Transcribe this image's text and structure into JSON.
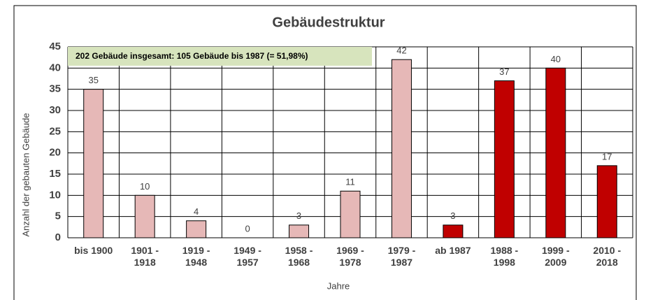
{
  "chart_data": {
    "type": "bar",
    "title": "Gebäudestruktur",
    "annotation": "202 Gebäude insgesamt: 105 Gebäude  bis 1987 (= 51,98%)",
    "x_label": "Jahre",
    "y_label": "Anzahl der gebauten Gebäude",
    "categories": [
      "bis 1900",
      "1901 -\n1918",
      "1919 -\n1948",
      "1949 -\n1957",
      "1958 -\n1968",
      "1969 -\n1978",
      "1979 -\n1987",
      "ab 1987",
      "1988 -\n1998",
      "1999 -\n2009",
      "2010 -\n2018"
    ],
    "values": [
      35,
      10,
      4,
      0,
      3,
      11,
      42,
      3,
      37,
      40,
      17
    ],
    "colors": [
      "#e6b8b7",
      "#e6b8b7",
      "#e6b8b7",
      "#e6b8b7",
      "#e6b8b7",
      "#e6b8b7",
      "#e6b8b7",
      "#c00000",
      "#c00000",
      "#c00000",
      "#c00000"
    ],
    "ylim": [
      0,
      45
    ],
    "yticks": [
      0,
      5,
      10,
      15,
      20,
      25,
      30,
      35,
      40,
      45
    ],
    "grid": true
  }
}
